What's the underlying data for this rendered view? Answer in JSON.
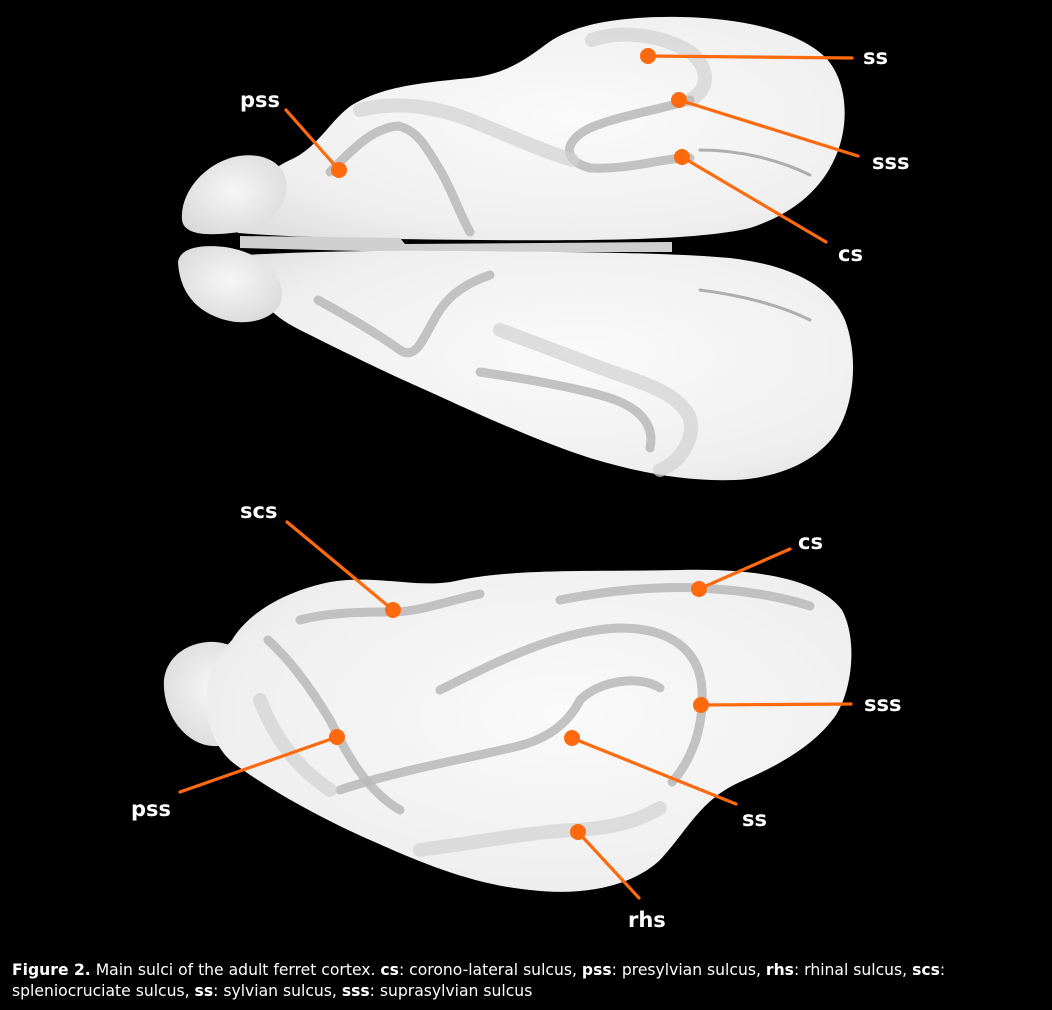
{
  "caption": {
    "figure_label": "Figure 2.",
    "intro": " Main sulci of the adult ferret cortex. ",
    "entries": [
      {
        "abbr": "cs",
        "desc": ": corono-lateral sulcus, "
      },
      {
        "abbr": "pss",
        "desc": ": presylvian sulcus, "
      },
      {
        "abbr": "rhs",
        "desc": ": rhinal sulcus, "
      },
      {
        "abbr": "scs",
        "desc": ": spleniocruciate sulcus, "
      },
      {
        "abbr": "ss",
        "desc": ": sylvian sulcus, "
      },
      {
        "abbr": "sss",
        "desc": ": suprasylvian sulcus"
      }
    ]
  },
  "top_view": {
    "labels": {
      "ss": "ss",
      "pss": "pss",
      "sss": "sss",
      "cs": "cs"
    }
  },
  "lateral_view": {
    "labels": {
      "scs": "scs",
      "cs": "cs",
      "sss": "sss",
      "pss": "pss",
      "ss": "ss",
      "rhs": "rhs"
    }
  },
  "colors": {
    "background": "#000000",
    "cortex": "#f2f2f2",
    "marker": "#ff6a0f",
    "label_text": "#ffffff"
  }
}
